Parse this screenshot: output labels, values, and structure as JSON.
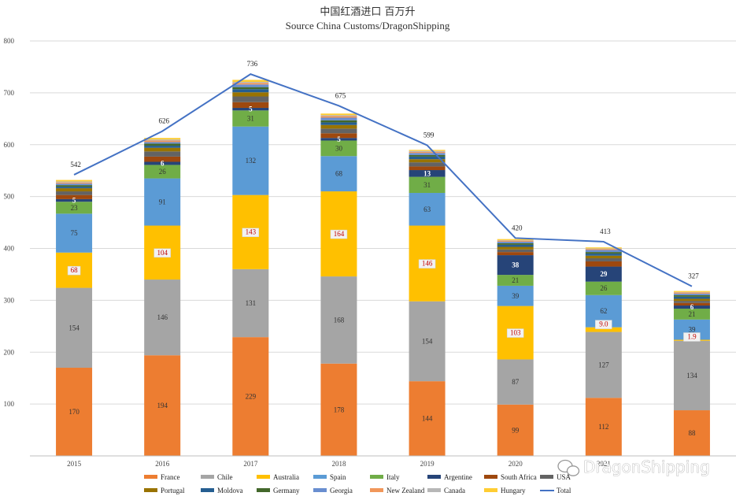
{
  "chart_data": {
    "type": "bar",
    "title": "中国红酒进口 百万升",
    "subtitle": "Source China Customs/DragonShipping",
    "ylim": [
      0,
      800
    ],
    "yticks": [
      "",
      "100",
      "200",
      "300",
      "400",
      "500",
      "600",
      "700",
      "800"
    ],
    "categories": [
      "2015",
      "2016",
      "2017",
      "2018",
      "2019",
      "2020",
      "2021",
      "2022"
    ],
    "categories_printed": [
      "2015",
      "2016",
      "2017",
      "2018",
      "2019",
      "2020",
      "2021",
      ""
    ],
    "grid": true,
    "legend_position": "bottom",
    "series": [
      {
        "name": "France",
        "color": "#ED7D31",
        "values": [
          170,
          194,
          229,
          178,
          144,
          99,
          112,
          88
        ],
        "labels": [
          "170",
          "194",
          "229",
          "178",
          "144",
          "99",
          "112",
          "88"
        ]
      },
      {
        "name": "Chile",
        "color": "#A5A5A5",
        "values": [
          154,
          146,
          131,
          168,
          154,
          87,
          127,
          134
        ],
        "labels": [
          "154",
          "146",
          "131",
          "168",
          "154",
          "87",
          "127",
          "134"
        ]
      },
      {
        "name": "Australia",
        "color": "#FFC000",
        "values": [
          68,
          104,
          143,
          164,
          146,
          103,
          9,
          1.9
        ],
        "labels": [
          "68",
          "104",
          "143",
          "164",
          "146",
          "103",
          "9.0",
          "1.9"
        ]
      },
      {
        "name": "Spain",
        "color": "#5B9BD5",
        "values": [
          75,
          91,
          132,
          68,
          63,
          39,
          62,
          39
        ],
        "labels": [
          "75",
          "91",
          "132",
          "68",
          "63",
          "39",
          "62",
          "39"
        ]
      },
      {
        "name": "Italy",
        "color": "#70AD47",
        "values": [
          23,
          26,
          31,
          30,
          31,
          21,
          26,
          21
        ],
        "labels": [
          "23",
          "26",
          "31",
          "30",
          "31",
          "21",
          "26",
          "21"
        ]
      },
      {
        "name": "Argentine",
        "color": "#264478",
        "values": [
          5,
          6,
          5,
          5,
          13,
          38,
          29,
          6
        ],
        "labels": [
          "5",
          "6",
          "5",
          "5",
          "13",
          "38",
          "29",
          "6"
        ]
      },
      {
        "name": "South Africa",
        "color": "#9E480E",
        "values": [
          8,
          10,
          11,
          9,
          7,
          6,
          10,
          5
        ]
      },
      {
        "name": "USA",
        "color": "#636363",
        "values": [
          7,
          10,
          11,
          9,
          8,
          5,
          6,
          4
        ]
      },
      {
        "name": "Portugal",
        "color": "#997300",
        "values": [
          6,
          7,
          8,
          7,
          6,
          5,
          5,
          4
        ]
      },
      {
        "name": "Moldova",
        "color": "#255E91",
        "values": [
          3,
          4,
          6,
          5,
          5,
          4,
          4,
          4
        ]
      },
      {
        "name": "Germany",
        "color": "#43682B",
        "values": [
          3,
          4,
          4,
          4,
          3,
          3,
          3,
          3
        ]
      },
      {
        "name": "Georgia",
        "color": "#698ED0",
        "values": [
          3,
          3,
          5,
          5,
          4,
          3,
          4,
          3
        ]
      },
      {
        "name": "New Zealand",
        "color": "#F1975A",
        "values": [
          2,
          3,
          3,
          3,
          2,
          2,
          2,
          2
        ]
      },
      {
        "name": "Canada",
        "color": "#B7B7B7",
        "values": [
          2,
          2,
          2,
          2,
          2,
          1,
          1,
          1
        ]
      },
      {
        "name": "Hungary",
        "color": "#FFCD33",
        "values": [
          3,
          3,
          4,
          3,
          2,
          2,
          2,
          2
        ]
      }
    ],
    "total": {
      "name": "Total",
      "color": "#4472C4",
      "values": [
        542,
        626,
        736,
        675,
        599,
        420,
        413,
        327
      ],
      "labels": [
        "542",
        "626",
        "736",
        "675",
        "599",
        "420",
        "413",
        "327"
      ]
    }
  },
  "watermark": {
    "text": "DragonShipping",
    "icon": "wechat-icon"
  }
}
